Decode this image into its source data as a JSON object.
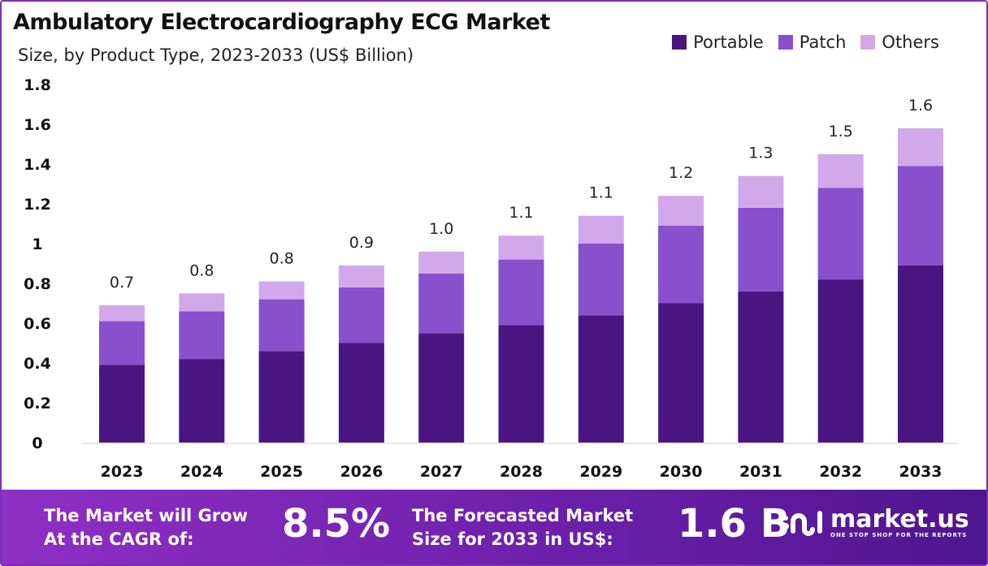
{
  "chart_data": {
    "type": "bar",
    "stacked": true,
    "title": "Ambulatory Electrocardiography ECG Market",
    "subtitle": "Size, by Product Type, 2023-2033 (US$ Billion)",
    "categories": [
      "2023",
      "2024",
      "2025",
      "2026",
      "2027",
      "2028",
      "2029",
      "2030",
      "2031",
      "2032",
      "2033"
    ],
    "series": [
      {
        "name": "Portable",
        "color": "#4a1580",
        "values": [
          0.39,
          0.42,
          0.46,
          0.5,
          0.55,
          0.59,
          0.64,
          0.7,
          0.76,
          0.82,
          0.89
        ]
      },
      {
        "name": "Patch",
        "color": "#8a4fcc",
        "values": [
          0.22,
          0.24,
          0.26,
          0.28,
          0.3,
          0.33,
          0.36,
          0.39,
          0.42,
          0.46,
          0.5
        ]
      },
      {
        "name": "Others",
        "color": "#d3a8ea",
        "values": [
          0.08,
          0.09,
          0.09,
          0.11,
          0.11,
          0.12,
          0.14,
          0.15,
          0.16,
          0.17,
          0.19
        ]
      }
    ],
    "total_labels": [
      "0.7",
      "0.8",
      "0.8",
      "0.9",
      "1.0",
      "1.1",
      "1.1",
      "1.2",
      "1.3",
      "1.5",
      "1.6"
    ],
    "yticks": [
      "0",
      "0.2",
      "0.4",
      "0.6",
      "0.8",
      "1",
      "1.2",
      "1.4",
      "1.6",
      "1.8"
    ],
    "ylim": [
      0,
      1.8
    ],
    "grid": false,
    "legend": "top-right"
  },
  "footer": {
    "cagr_label_1": "The Market will Grow",
    "cagr_label_2": "At the CAGR of:",
    "cagr_value": "8.5%",
    "forecast_label_1": "The Forecasted Market",
    "forecast_label_2": "Size for 2033 in US$:",
    "forecast_value": "1.6 B",
    "logo_name": "market.us",
    "logo_tagline": "ONE STOP SHOP FOR THE REPORTS"
  }
}
